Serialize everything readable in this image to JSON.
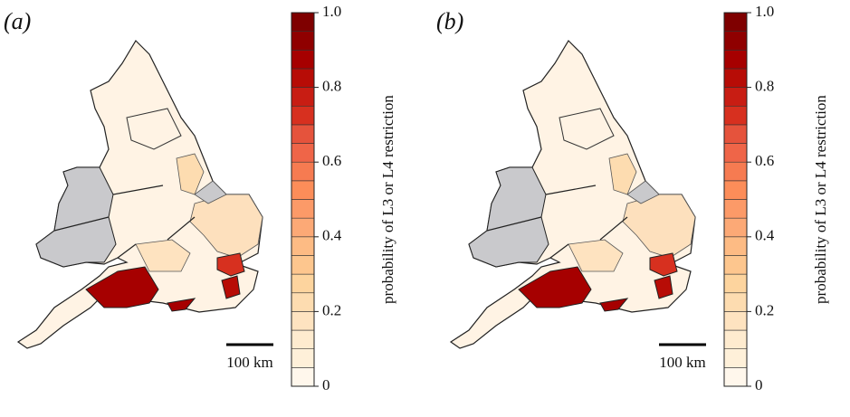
{
  "panels": [
    {
      "label": "(a)",
      "scale_bar": "100 km",
      "colorbar": {
        "label": "probability of L3 or L4 restriction",
        "lim": [
          0,
          1
        ],
        "ticks": [
          0,
          0.2,
          0.4,
          0.6,
          0.8,
          {
            "value": 1,
            "label": "1.0"
          }
        ],
        "colors": [
          "#fff7ec",
          "#fef0d9",
          "#feebcf",
          "#fee3c0",
          "#fddcb0",
          "#fdd49e",
          "#fdc68e",
          "#fdbb84",
          "#fca976",
          "#fc9a68",
          "#fc8d59",
          "#f67b51",
          "#ef6548",
          "#e5533c",
          "#d7301f",
          "#c81d13",
          "#b70c06",
          "#a60000",
          "#8f0000",
          "#7f0000"
        ]
      }
    },
    {
      "label": "(b)",
      "scale_bar": "100 km",
      "colorbar": {
        "label": "probability of L3 or L4 restriction",
        "lim": [
          0,
          1
        ],
        "ticks": [
          0,
          0.2,
          0.4,
          0.6,
          0.8,
          {
            "value": 1,
            "label": "1.0"
          }
        ],
        "colors": [
          "#fff7ec",
          "#fef0d9",
          "#feebcf",
          "#fee3c0",
          "#fddcb0",
          "#fdd49e",
          "#fdc68e",
          "#fdbb84",
          "#fca976",
          "#fc9a68",
          "#fc8d59",
          "#f67b51",
          "#ef6548",
          "#e5533c",
          "#d7301f",
          "#c81d13",
          "#b70c06",
          "#a60000",
          "#8f0000",
          "#7f0000"
        ]
      }
    }
  ]
}
